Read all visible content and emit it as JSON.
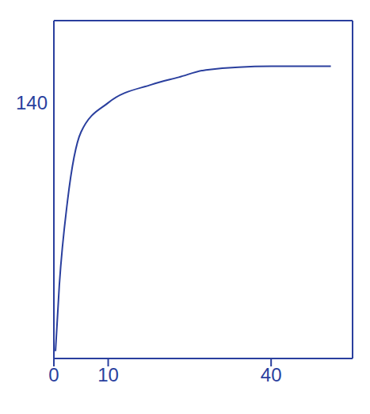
{
  "chart_data": {
    "type": "line",
    "x": [
      0.3,
      1,
      2.5,
      5,
      10,
      18,
      23,
      28,
      40,
      51
    ],
    "values": [
      4,
      40,
      86,
      124,
      140,
      150,
      154,
      158,
      160,
      160
    ],
    "color": "#2a3f9e",
    "xlim": [
      0,
      55
    ],
    "xticks": [
      0,
      10,
      40
    ],
    "ylim": [
      0,
      185
    ],
    "yticks": [
      140
    ],
    "grid": false,
    "marker": "none"
  }
}
